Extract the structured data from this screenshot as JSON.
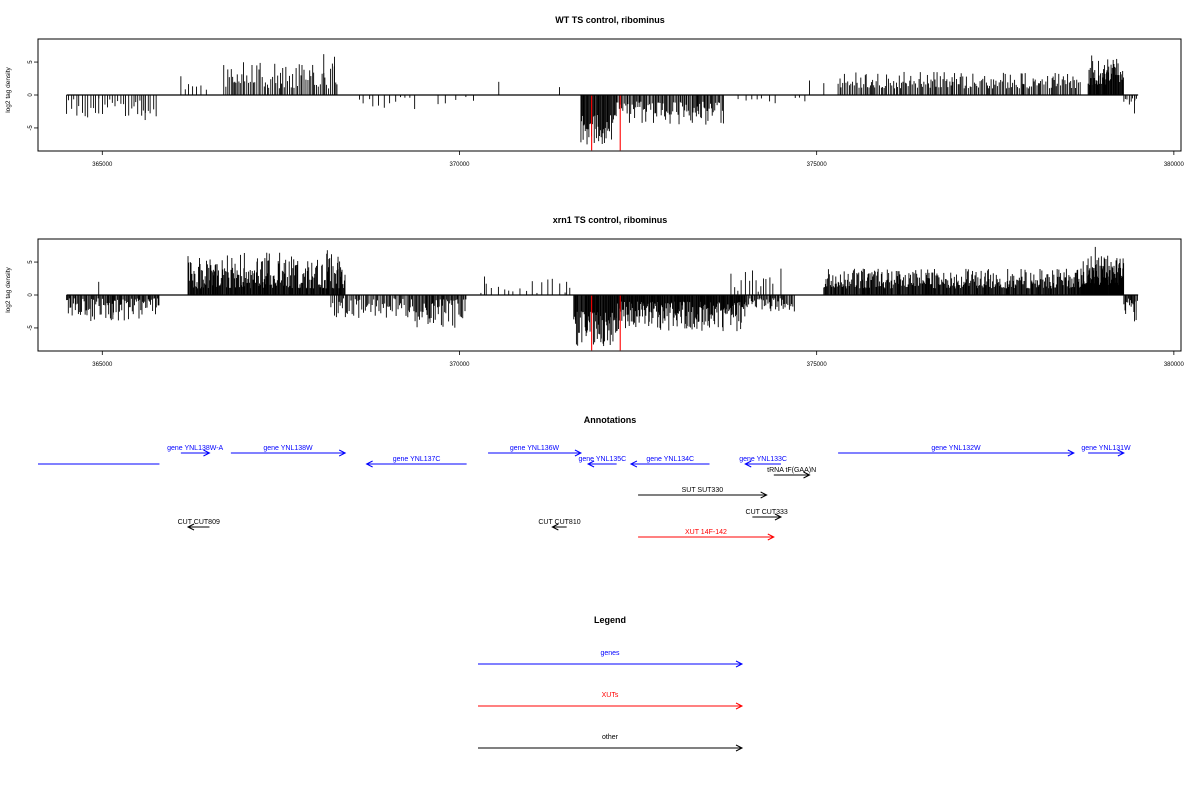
{
  "chart_data": [
    {
      "type": "bar",
      "title": "WT TS control, ribominus",
      "ylabel": "log2 tag density",
      "xlim": [
        364100,
        380100
      ],
      "ylim": [
        -8.5,
        8.5
      ],
      "x_ticks": [
        365000,
        370000,
        375000,
        380000
      ],
      "x_tick_labels": [
        "365000",
        "370000",
        "375000",
        "380000"
      ],
      "y_ticks": [
        -5,
        0,
        5
      ],
      "y_tick_labels": [
        "-5",
        "0",
        "5"
      ],
      "bar_color": "#000000",
      "highlight_color": "#ff0000",
      "baseline_range": [
        364500,
        379500
      ],
      "segments": [
        {
          "from": 364500,
          "to": 365800,
          "sign": -1,
          "lo": 0.5,
          "hi": 3.5,
          "step": 38
        },
        {
          "from": 366100,
          "to": 366500,
          "sign": 1,
          "lo": 0.5,
          "hi": 3.0,
          "step": 55
        },
        {
          "from": 366700,
          "to": 368300,
          "sign": 1,
          "lo": 1.0,
          "hi": 5.0,
          "step": 22
        },
        {
          "from": 368600,
          "to": 369400,
          "sign": -1,
          "lo": 0.3,
          "hi": 2.2,
          "step": 70
        },
        {
          "from": 369700,
          "to": 370200,
          "sign": -1,
          "lo": 0.3,
          "hi": 1.5,
          "step": 110
        },
        {
          "from": 371700,
          "to": 372200,
          "sign": -1,
          "lo": 3.0,
          "hi": 7.5,
          "step": 12
        },
        {
          "from": 372200,
          "to": 373700,
          "sign": -1,
          "lo": 1.0,
          "hi": 4.5,
          "step": 16
        },
        {
          "from": 373900,
          "to": 374500,
          "sign": -1,
          "lo": 0.3,
          "hi": 1.8,
          "step": 90
        },
        {
          "from": 374700,
          "to": 374900,
          "sign": -1,
          "lo": 0.3,
          "hi": 1.2,
          "step": 90
        },
        {
          "from": 375300,
          "to": 378700,
          "sign": 1,
          "lo": 1.0,
          "hi": 3.5,
          "step": 20
        },
        {
          "from": 378800,
          "to": 379300,
          "sign": 1,
          "lo": 1.5,
          "hi": 5.5,
          "step": 9
        },
        {
          "from": 379300,
          "to": 379500,
          "sign": -1,
          "lo": 0.5,
          "hi": 2.5,
          "step": 25
        }
      ],
      "spikes": [
        {
          "x": 364950,
          "y": -2.8
        },
        {
          "x": 365600,
          "y": -3.8
        },
        {
          "x": 368100,
          "y": 6.2
        },
        {
          "x": 368250,
          "y": 5.8
        },
        {
          "x": 370550,
          "y": 2.0
        },
        {
          "x": 371400,
          "y": 1.2
        },
        {
          "x": 374900,
          "y": 2.2
        },
        {
          "x": 375100,
          "y": 1.8
        },
        {
          "x": 378850,
          "y": 6.0
        },
        {
          "x": 379450,
          "y": -2.8
        }
      ],
      "highlights": [
        {
          "x": 371850,
          "y": -8.4
        },
        {
          "x": 372250,
          "y": -8.4
        }
      ]
    },
    {
      "type": "bar",
      "title": "xrn1 TS control, ribominus",
      "ylabel": "log2 tag density",
      "xlim": [
        364100,
        380100
      ],
      "ylim": [
        -8.5,
        8.5
      ],
      "x_ticks": [
        365000,
        370000,
        375000,
        380000
      ],
      "x_tick_labels": [
        "365000",
        "370000",
        "375000",
        "380000"
      ],
      "y_ticks": [
        -5,
        0,
        5
      ],
      "y_tick_labels": [
        "-5",
        "0",
        "5"
      ],
      "bar_color": "#000000",
      "highlight_color": "#ff0000",
      "baseline_range": [
        364500,
        379500
      ],
      "segments": [
        {
          "from": 364500,
          "to": 365800,
          "sign": -1,
          "lo": 0.5,
          "hi": 4.0,
          "step": 14
        },
        {
          "from": 366200,
          "to": 368400,
          "sign": 1,
          "lo": 1.0,
          "hi": 6.5,
          "step": 10
        },
        {
          "from": 368200,
          "to": 369300,
          "sign": -1,
          "lo": 0.5,
          "hi": 3.5,
          "step": 20
        },
        {
          "from": 369300,
          "to": 370100,
          "sign": -1,
          "lo": 0.5,
          "hi": 5.0,
          "step": 14
        },
        {
          "from": 370300,
          "to": 371600,
          "sign": 1,
          "lo": 0.3,
          "hi": 2.5,
          "step": 75
        },
        {
          "from": 371600,
          "to": 372200,
          "sign": -1,
          "lo": 2.5,
          "hi": 8.0,
          "step": 10
        },
        {
          "from": 372200,
          "to": 374000,
          "sign": -1,
          "lo": 1.0,
          "hi": 5.5,
          "step": 9
        },
        {
          "from": 373800,
          "to": 374400,
          "sign": 1,
          "lo": 0.5,
          "hi": 4.5,
          "step": 45
        },
        {
          "from": 374000,
          "to": 374700,
          "sign": -1,
          "lo": 0.5,
          "hi": 2.5,
          "step": 16
        },
        {
          "from": 375100,
          "to": 378700,
          "sign": 1,
          "lo": 1.0,
          "hi": 4.0,
          "step": 11
        },
        {
          "from": 378700,
          "to": 379300,
          "sign": 1,
          "lo": 1.5,
          "hi": 6.0,
          "step": 6
        },
        {
          "from": 379300,
          "to": 379500,
          "sign": -1,
          "lo": 0.5,
          "hi": 4.0,
          "step": 15
        }
      ],
      "spikes": [
        {
          "x": 364950,
          "y": 2.0
        },
        {
          "x": 365150,
          "y": -3.0
        },
        {
          "x": 368150,
          "y": 6.8
        },
        {
          "x": 368300,
          "y": 5.8
        },
        {
          "x": 370350,
          "y": 2.8
        },
        {
          "x": 371500,
          "y": 2.0
        },
        {
          "x": 374500,
          "y": 4.0
        },
        {
          "x": 378900,
          "y": 7.3
        },
        {
          "x": 379450,
          "y": -4.0
        }
      ],
      "highlights": [
        {
          "x": 371850,
          "y": -8.4
        },
        {
          "x": 372250,
          "y": -8.4
        }
      ]
    }
  ],
  "annotations": {
    "title": "Annotations",
    "xlim": [
      364100,
      380100
    ],
    "features": [
      {
        "label": "",
        "color": "#0000ff",
        "from": 364100,
        "to": 365800,
        "dir": "none",
        "row": 2
      },
      {
        "label": "gene YNL138W-A",
        "color": "#0000ff",
        "from": 366100,
        "to": 366500,
        "dir": "right",
        "row": 1
      },
      {
        "label": "gene YNL138W",
        "color": "#0000ff",
        "from": 366800,
        "to": 368400,
        "dir": "right",
        "row": 1
      },
      {
        "label": "gene YNL137C",
        "color": "#0000ff",
        "from": 368700,
        "to": 370100,
        "dir": "left",
        "row": 2
      },
      {
        "label": "gene YNL136W",
        "color": "#0000ff",
        "from": 370400,
        "to": 371700,
        "dir": "right",
        "row": 1
      },
      {
        "label": "gene YNL135C",
        "color": "#0000ff",
        "from": 371800,
        "to": 372200,
        "dir": "left",
        "row": 2
      },
      {
        "label": "gene YNL134C",
        "color": "#0000ff",
        "from": 372400,
        "to": 373500,
        "dir": "left",
        "row": 2
      },
      {
        "label": "gene YNL133C",
        "color": "#0000ff",
        "from": 374000,
        "to": 374500,
        "dir": "left",
        "row": 2
      },
      {
        "label": "tRNA tF(GAA)N",
        "color": "#000000",
        "from": 374400,
        "to": 374900,
        "dir": "right",
        "row": 3
      },
      {
        "label": "gene YNL132W",
        "color": "#0000ff",
        "from": 375300,
        "to": 378600,
        "dir": "right",
        "row": 1
      },
      {
        "label": "gene YNL131W",
        "color": "#0000ff",
        "from": 378800,
        "to": 379300,
        "dir": "right",
        "row": 1
      },
      {
        "label": "SUT SUT330",
        "color": "#000000",
        "from": 372500,
        "to": 374300,
        "dir": "right",
        "row": 4
      },
      {
        "label": "CUT CUT333",
        "color": "#000000",
        "from": 374100,
        "to": 374500,
        "dir": "right",
        "row": 5
      },
      {
        "label": "CUT CUT809",
        "color": "#000000",
        "from": 366200,
        "to": 366500,
        "dir": "left",
        "row": 6
      },
      {
        "label": "CUT CUT810",
        "color": "#000000",
        "from": 371300,
        "to": 371500,
        "dir": "left",
        "row": 6
      },
      {
        "label": "XUT 14F-142",
        "color": "#ff0000",
        "from": 372500,
        "to": 374400,
        "dir": "right",
        "row": 7
      }
    ]
  },
  "legend": {
    "title": "Legend",
    "entries": [
      {
        "label": "genes",
        "color": "#0000ff"
      },
      {
        "label": "XUTs",
        "color": "#ff0000"
      },
      {
        "label": "other",
        "color": "#000000"
      }
    ]
  }
}
